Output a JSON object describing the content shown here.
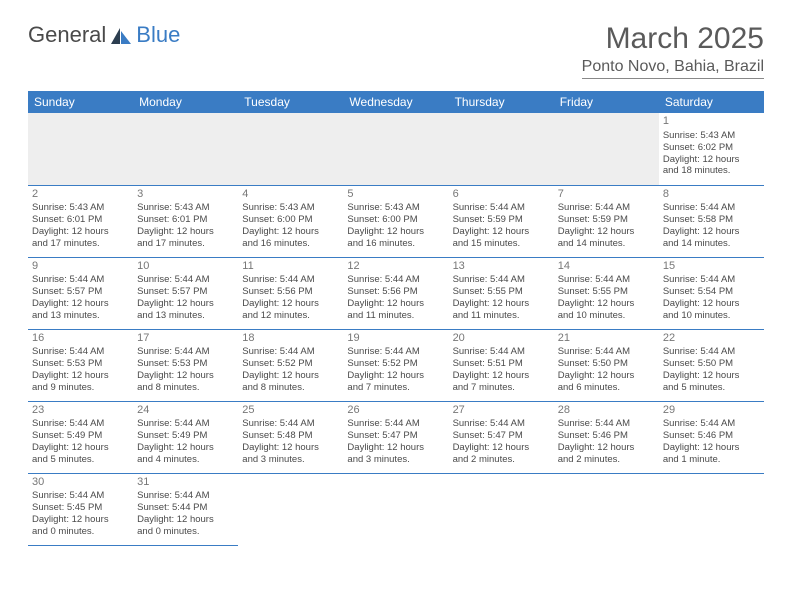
{
  "logo": {
    "text1": "General",
    "text2": "Blue"
  },
  "title": "March 2025",
  "location": "Ponto Novo, Bahia, Brazil",
  "colors": {
    "header_bg": "#3a7cc4",
    "header_text": "#ffffff",
    "border": "#3a7cc4",
    "text": "#4a4a4a",
    "muted_bg": "#eeeeee",
    "logo_blue": "#3a7cc4"
  },
  "fonts": {
    "title_size": 30,
    "location_size": 16,
    "dayhdr_size": 12,
    "cell_size": 9.5
  },
  "day_headers": [
    "Sunday",
    "Monday",
    "Tuesday",
    "Wednesday",
    "Thursday",
    "Friday",
    "Saturday"
  ],
  "weeks": [
    [
      null,
      null,
      null,
      null,
      null,
      null,
      {
        "n": "1",
        "sr": "Sunrise: 5:43 AM",
        "ss": "Sunset: 6:02 PM",
        "d1": "Daylight: 12 hours",
        "d2": "and 18 minutes."
      }
    ],
    [
      {
        "n": "2",
        "sr": "Sunrise: 5:43 AM",
        "ss": "Sunset: 6:01 PM",
        "d1": "Daylight: 12 hours",
        "d2": "and 17 minutes."
      },
      {
        "n": "3",
        "sr": "Sunrise: 5:43 AM",
        "ss": "Sunset: 6:01 PM",
        "d1": "Daylight: 12 hours",
        "d2": "and 17 minutes."
      },
      {
        "n": "4",
        "sr": "Sunrise: 5:43 AM",
        "ss": "Sunset: 6:00 PM",
        "d1": "Daylight: 12 hours",
        "d2": "and 16 minutes."
      },
      {
        "n": "5",
        "sr": "Sunrise: 5:43 AM",
        "ss": "Sunset: 6:00 PM",
        "d1": "Daylight: 12 hours",
        "d2": "and 16 minutes."
      },
      {
        "n": "6",
        "sr": "Sunrise: 5:44 AM",
        "ss": "Sunset: 5:59 PM",
        "d1": "Daylight: 12 hours",
        "d2": "and 15 minutes."
      },
      {
        "n": "7",
        "sr": "Sunrise: 5:44 AM",
        "ss": "Sunset: 5:59 PM",
        "d1": "Daylight: 12 hours",
        "d2": "and 14 minutes."
      },
      {
        "n": "8",
        "sr": "Sunrise: 5:44 AM",
        "ss": "Sunset: 5:58 PM",
        "d1": "Daylight: 12 hours",
        "d2": "and 14 minutes."
      }
    ],
    [
      {
        "n": "9",
        "sr": "Sunrise: 5:44 AM",
        "ss": "Sunset: 5:57 PM",
        "d1": "Daylight: 12 hours",
        "d2": "and 13 minutes."
      },
      {
        "n": "10",
        "sr": "Sunrise: 5:44 AM",
        "ss": "Sunset: 5:57 PM",
        "d1": "Daylight: 12 hours",
        "d2": "and 13 minutes."
      },
      {
        "n": "11",
        "sr": "Sunrise: 5:44 AM",
        "ss": "Sunset: 5:56 PM",
        "d1": "Daylight: 12 hours",
        "d2": "and 12 minutes."
      },
      {
        "n": "12",
        "sr": "Sunrise: 5:44 AM",
        "ss": "Sunset: 5:56 PM",
        "d1": "Daylight: 12 hours",
        "d2": "and 11 minutes."
      },
      {
        "n": "13",
        "sr": "Sunrise: 5:44 AM",
        "ss": "Sunset: 5:55 PM",
        "d1": "Daylight: 12 hours",
        "d2": "and 11 minutes."
      },
      {
        "n": "14",
        "sr": "Sunrise: 5:44 AM",
        "ss": "Sunset: 5:55 PM",
        "d1": "Daylight: 12 hours",
        "d2": "and 10 minutes."
      },
      {
        "n": "15",
        "sr": "Sunrise: 5:44 AM",
        "ss": "Sunset: 5:54 PM",
        "d1": "Daylight: 12 hours",
        "d2": "and 10 minutes."
      }
    ],
    [
      {
        "n": "16",
        "sr": "Sunrise: 5:44 AM",
        "ss": "Sunset: 5:53 PM",
        "d1": "Daylight: 12 hours",
        "d2": "and 9 minutes."
      },
      {
        "n": "17",
        "sr": "Sunrise: 5:44 AM",
        "ss": "Sunset: 5:53 PM",
        "d1": "Daylight: 12 hours",
        "d2": "and 8 minutes."
      },
      {
        "n": "18",
        "sr": "Sunrise: 5:44 AM",
        "ss": "Sunset: 5:52 PM",
        "d1": "Daylight: 12 hours",
        "d2": "and 8 minutes."
      },
      {
        "n": "19",
        "sr": "Sunrise: 5:44 AM",
        "ss": "Sunset: 5:52 PM",
        "d1": "Daylight: 12 hours",
        "d2": "and 7 minutes."
      },
      {
        "n": "20",
        "sr": "Sunrise: 5:44 AM",
        "ss": "Sunset: 5:51 PM",
        "d1": "Daylight: 12 hours",
        "d2": "and 7 minutes."
      },
      {
        "n": "21",
        "sr": "Sunrise: 5:44 AM",
        "ss": "Sunset: 5:50 PM",
        "d1": "Daylight: 12 hours",
        "d2": "and 6 minutes."
      },
      {
        "n": "22",
        "sr": "Sunrise: 5:44 AM",
        "ss": "Sunset: 5:50 PM",
        "d1": "Daylight: 12 hours",
        "d2": "and 5 minutes."
      }
    ],
    [
      {
        "n": "23",
        "sr": "Sunrise: 5:44 AM",
        "ss": "Sunset: 5:49 PM",
        "d1": "Daylight: 12 hours",
        "d2": "and 5 minutes."
      },
      {
        "n": "24",
        "sr": "Sunrise: 5:44 AM",
        "ss": "Sunset: 5:49 PM",
        "d1": "Daylight: 12 hours",
        "d2": "and 4 minutes."
      },
      {
        "n": "25",
        "sr": "Sunrise: 5:44 AM",
        "ss": "Sunset: 5:48 PM",
        "d1": "Daylight: 12 hours",
        "d2": "and 3 minutes."
      },
      {
        "n": "26",
        "sr": "Sunrise: 5:44 AM",
        "ss": "Sunset: 5:47 PM",
        "d1": "Daylight: 12 hours",
        "d2": "and 3 minutes."
      },
      {
        "n": "27",
        "sr": "Sunrise: 5:44 AM",
        "ss": "Sunset: 5:47 PM",
        "d1": "Daylight: 12 hours",
        "d2": "and 2 minutes."
      },
      {
        "n": "28",
        "sr": "Sunrise: 5:44 AM",
        "ss": "Sunset: 5:46 PM",
        "d1": "Daylight: 12 hours",
        "d2": "and 2 minutes."
      },
      {
        "n": "29",
        "sr": "Sunrise: 5:44 AM",
        "ss": "Sunset: 5:46 PM",
        "d1": "Daylight: 12 hours",
        "d2": "and 1 minute."
      }
    ],
    [
      {
        "n": "30",
        "sr": "Sunrise: 5:44 AM",
        "ss": "Sunset: 5:45 PM",
        "d1": "Daylight: 12 hours",
        "d2": "and 0 minutes."
      },
      {
        "n": "31",
        "sr": "Sunrise: 5:44 AM",
        "ss": "Sunset: 5:44 PM",
        "d1": "Daylight: 12 hours",
        "d2": "and 0 minutes."
      },
      null,
      null,
      null,
      null,
      null
    ]
  ]
}
